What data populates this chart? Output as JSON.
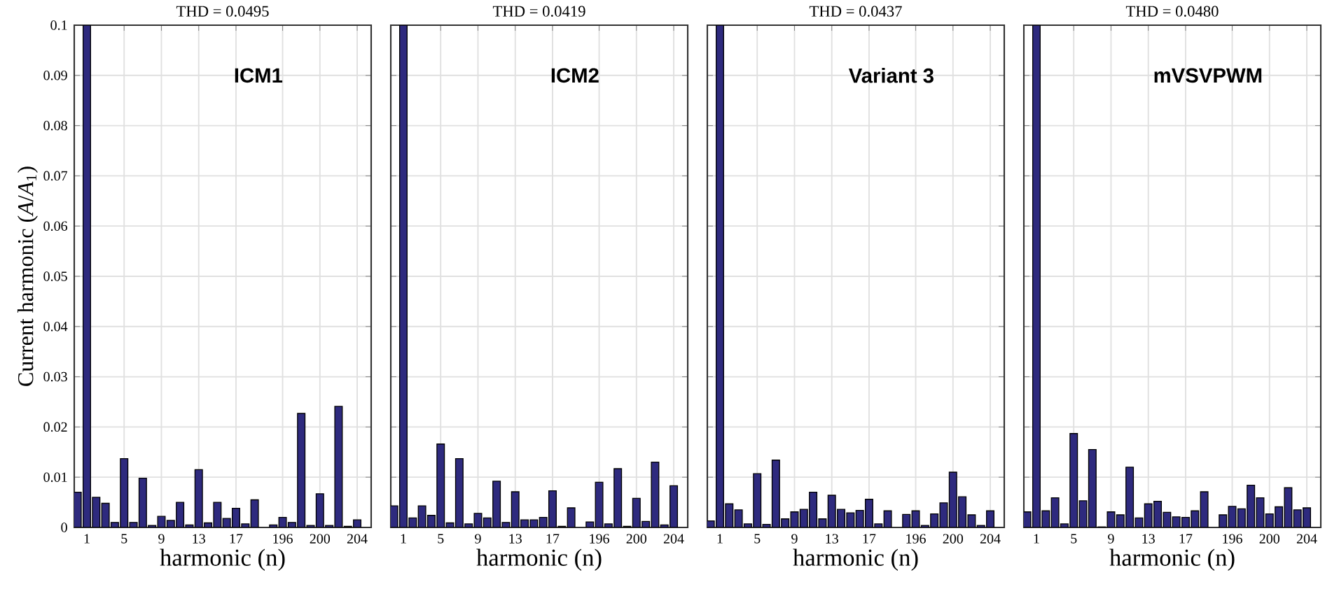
{
  "chart_data": [
    {
      "type": "bar",
      "title": "THD = 0.0495",
      "annotations": [
        "ICM1"
      ],
      "xlabel": "harmonic (n)",
      "ylabel": "Current harmonic (*A*/*A*$_{1}$)",
      "categories": [
        null,
        "1",
        null,
        null,
        null,
        "5",
        null,
        null,
        null,
        "9",
        null,
        null,
        null,
        "13",
        null,
        null,
        null,
        "17",
        null,
        null,
        null,
        null,
        "196",
        null,
        null,
        null,
        "200",
        null,
        null,
        null,
        "204"
      ],
      "values": [
        0.007,
        0.1,
        0.006,
        0.0048,
        0.001,
        0.0137,
        0.001,
        0.0098,
        0.0004,
        0.0022,
        0.0014,
        0.005,
        0.0005,
        0.0115,
        0.0009,
        0.005,
        0.0018,
        0.0038,
        0.0007,
        0.0055,
        null,
        0.0005,
        0.002,
        0.001,
        0.0227,
        0.0004,
        0.0067,
        0.0004,
        0.0241,
        0.0002,
        0.0015
      ],
      "color": "#2e2a7e",
      "ylim": [
        0,
        0.1
      ],
      "yticks": [
        0,
        0.01,
        0.02,
        0.03,
        0.04,
        0.05,
        0.06,
        0.07,
        0.08,
        0.09,
        0.1
      ],
      "grid": true
    },
    {
      "type": "bar",
      "title": "THD = 0.0419",
      "annotations": [
        "ICM2"
      ],
      "xlabel": "harmonic (n)",
      "categories": [
        null,
        "1",
        null,
        null,
        null,
        "5",
        null,
        null,
        null,
        "9",
        null,
        null,
        null,
        "13",
        null,
        null,
        null,
        "17",
        null,
        null,
        null,
        null,
        "196",
        null,
        null,
        null,
        "200",
        null,
        null,
        null,
        "204"
      ],
      "values": [
        0.0043,
        0.1,
        0.0019,
        0.0043,
        0.0024,
        0.0166,
        0.0009,
        0.0137,
        0.0007,
        0.0028,
        0.0019,
        0.0092,
        0.001,
        0.0071,
        0.0015,
        0.0015,
        0.002,
        0.0073,
        0.0002,
        0.0039,
        null,
        0.0011,
        0.009,
        0.0007,
        0.0117,
        0.0002,
        0.0058,
        0.0012,
        0.013,
        0.0005,
        0.0083
      ],
      "color": "#2e2a7e",
      "ylim": [
        0,
        0.1
      ],
      "yticks": [
        0,
        0.01,
        0.02,
        0.03,
        0.04,
        0.05,
        0.06,
        0.07,
        0.08,
        0.09,
        0.1
      ],
      "grid": true,
      "tick_labels": "x"
    },
    {
      "type": "bar",
      "title": "THD = 0.0437",
      "annotations": [
        "Variant 3"
      ],
      "xlabel": "harmonic (n)",
      "categories": [
        null,
        "1",
        null,
        null,
        null,
        "5",
        null,
        null,
        null,
        "9",
        null,
        null,
        null,
        "13",
        null,
        null,
        null,
        "17",
        null,
        null,
        null,
        null,
        "196",
        null,
        null,
        null,
        "200",
        null,
        null,
        null,
        "204"
      ],
      "values": [
        0.0013,
        0.1,
        0.0047,
        0.0035,
        0.0007,
        0.0107,
        0.0006,
        0.0134,
        0.0017,
        0.0031,
        0.0036,
        0.007,
        0.0017,
        0.0064,
        0.0036,
        0.0029,
        0.0034,
        0.0056,
        0.0007,
        0.0033,
        null,
        0.0026,
        0.0033,
        0.0004,
        0.0027,
        0.0049,
        0.011,
        0.0061,
        0.0025,
        0.0004,
        0.0033
      ],
      "color": "#2e2a7e",
      "ylim": [
        0,
        0.1
      ],
      "yticks": [
        0,
        0.01,
        0.02,
        0.03,
        0.04,
        0.05,
        0.06,
        0.07,
        0.08,
        0.09,
        0.1
      ],
      "grid": true,
      "tick_labels": "x"
    },
    {
      "type": "bar",
      "title": "THD = 0.0480",
      "annotations": [
        "mVSVPWM"
      ],
      "xlabel": "harmonic (n)",
      "categories": [
        null,
        "1",
        null,
        null,
        null,
        "5",
        null,
        null,
        null,
        "9",
        null,
        null,
        null,
        "13",
        null,
        null,
        null,
        "17",
        null,
        null,
        null,
        null,
        "196",
        null,
        null,
        null,
        "200",
        null,
        null,
        null,
        "204"
      ],
      "values": [
        0.0031,
        0.1,
        0.0033,
        0.0059,
        0.0007,
        0.0187,
        0.0053,
        0.0155,
        0.0001,
        0.0031,
        0.0025,
        0.012,
        0.0019,
        0.0047,
        0.0052,
        0.003,
        0.0021,
        0.002,
        0.0033,
        0.0071,
        null,
        0.0025,
        0.0042,
        0.0037,
        0.0084,
        0.0059,
        0.0027,
        0.0041,
        0.0079,
        0.0035,
        0.0039
      ],
      "color": "#2e2a7e",
      "ylim": [
        0,
        0.1
      ],
      "yticks": [
        0,
        0.01,
        0.02,
        0.03,
        0.04,
        0.05,
        0.06,
        0.07,
        0.08,
        0.09,
        0.1
      ],
      "grid": true,
      "tick_labels": "x"
    }
  ]
}
